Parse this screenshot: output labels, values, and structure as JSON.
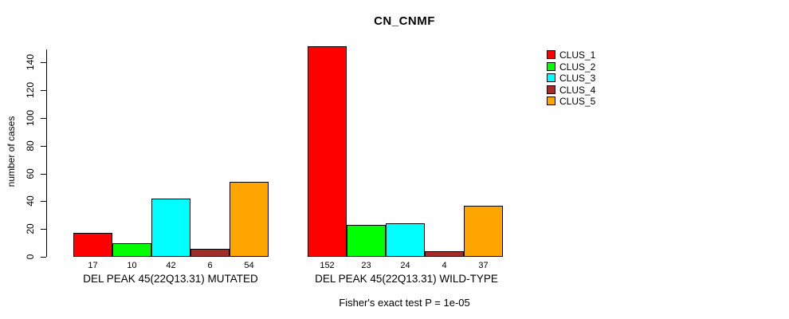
{
  "chart_data": {
    "type": "bar",
    "title": "CN_CNMF",
    "ylabel": "number of cases",
    "xlabel": "",
    "ylim": [
      0,
      152
    ],
    "yticks": [
      0,
      20,
      40,
      60,
      80,
      100,
      120,
      140
    ],
    "grid": false,
    "legend_position": "right",
    "categories": [
      "DEL PEAK 45(22Q13.31) MUTATED",
      "DEL PEAK 45(22Q13.31) WILD-TYPE"
    ],
    "series": [
      {
        "name": "CLUS_1",
        "color": "#FF0000",
        "values": [
          17,
          152
        ]
      },
      {
        "name": "CLUS_2",
        "color": "#00FF00",
        "values": [
          10,
          23
        ]
      },
      {
        "name": "CLUS_3",
        "color": "#00FFFF",
        "values": [
          42,
          24
        ]
      },
      {
        "name": "CLUS_4",
        "color": "#A52A2A",
        "values": [
          6,
          4
        ]
      },
      {
        "name": "CLUS_5",
        "color": "#FFA500",
        "values": [
          54,
          37
        ]
      }
    ],
    "bar_value_labels": [
      [
        "17",
        "10",
        "42",
        "6",
        "54"
      ],
      [
        "152",
        "23",
        "24",
        "4",
        "37"
      ]
    ],
    "annotation": "Fisher's exact test P = 1e-05"
  },
  "footer": {
    "caption": "Fisher's exact test P = 1e-05"
  }
}
